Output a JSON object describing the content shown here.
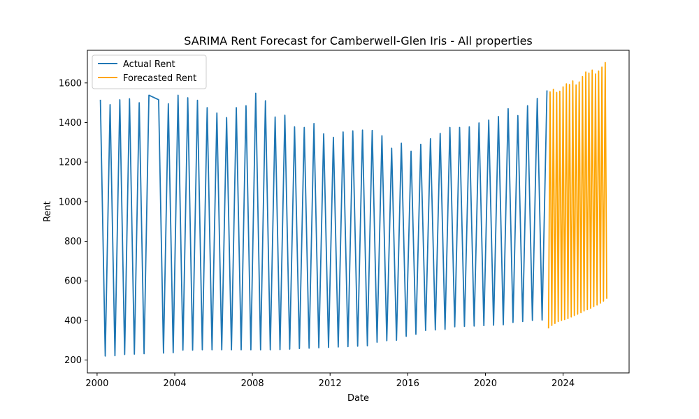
{
  "chart_data": {
    "type": "line",
    "title": "SARIMA Rent Forecast for Camberwell-Glen Iris - All properties",
    "xlabel": "Date",
    "ylabel": "Rent",
    "xlim": [
      1999.5,
      2027.4
    ],
    "ylim": [
      135,
      1765
    ],
    "x_ticks": [
      2000,
      2004,
      2008,
      2012,
      2016,
      2020,
      2024
    ],
    "y_ticks": [
      200,
      400,
      600,
      800,
      1000,
      1200,
      1400,
      1600
    ],
    "grid": false,
    "legend_position": "top-left",
    "series": [
      {
        "name": "Actual Rent",
        "color": "#1f77b4",
        "points": [
          [
            2000.17,
            1515
          ],
          [
            2000.42,
            220
          ],
          [
            2000.67,
            1490
          ],
          [
            2000.92,
            222
          ],
          [
            2001.17,
            1515
          ],
          [
            2001.42,
            228
          ],
          [
            2001.67,
            1520
          ],
          [
            2001.92,
            230
          ],
          [
            2002.17,
            1500
          ],
          [
            2002.42,
            232
          ],
          [
            2002.67,
            1538
          ],
          [
            2003.17,
            1515
          ],
          [
            2003.42,
            235
          ],
          [
            2003.67,
            1495
          ],
          [
            2003.92,
            237
          ],
          [
            2004.17,
            1538
          ],
          [
            2004.42,
            250
          ],
          [
            2004.67,
            1525
          ],
          [
            2004.92,
            250
          ],
          [
            2005.17,
            1512
          ],
          [
            2005.42,
            252
          ],
          [
            2005.67,
            1475
          ],
          [
            2005.92,
            252
          ],
          [
            2006.17,
            1448
          ],
          [
            2006.42,
            252
          ],
          [
            2006.67,
            1425
          ],
          [
            2006.92,
            252
          ],
          [
            2007.17,
            1475
          ],
          [
            2007.42,
            252
          ],
          [
            2007.67,
            1485
          ],
          [
            2007.92,
            252
          ],
          [
            2008.17,
            1548
          ],
          [
            2008.42,
            252
          ],
          [
            2008.67,
            1510
          ],
          [
            2008.92,
            252
          ],
          [
            2009.17,
            1428
          ],
          [
            2009.42,
            253
          ],
          [
            2009.67,
            1437
          ],
          [
            2009.92,
            255
          ],
          [
            2010.17,
            1378
          ],
          [
            2010.42,
            258
          ],
          [
            2010.67,
            1375
          ],
          [
            2010.92,
            260
          ],
          [
            2011.17,
            1395
          ],
          [
            2011.42,
            262
          ],
          [
            2011.67,
            1343
          ],
          [
            2011.92,
            264
          ],
          [
            2012.17,
            1325
          ],
          [
            2012.42,
            266
          ],
          [
            2012.67,
            1352
          ],
          [
            2012.92,
            268
          ],
          [
            2013.17,
            1358
          ],
          [
            2013.42,
            270
          ],
          [
            2013.67,
            1362
          ],
          [
            2013.92,
            272
          ],
          [
            2014.17,
            1360
          ],
          [
            2014.42,
            290
          ],
          [
            2014.67,
            1333
          ],
          [
            2014.92,
            298
          ],
          [
            2015.17,
            1270
          ],
          [
            2015.42,
            300
          ],
          [
            2015.67,
            1295
          ],
          [
            2015.92,
            320
          ],
          [
            2016.17,
            1255
          ],
          [
            2016.42,
            330
          ],
          [
            2016.67,
            1290
          ],
          [
            2016.92,
            350
          ],
          [
            2017.17,
            1318
          ],
          [
            2017.42,
            352
          ],
          [
            2017.67,
            1345
          ],
          [
            2017.92,
            355
          ],
          [
            2018.17,
            1375
          ],
          [
            2018.42,
            368
          ],
          [
            2018.67,
            1375
          ],
          [
            2018.92,
            370
          ],
          [
            2019.17,
            1378
          ],
          [
            2019.42,
            372
          ],
          [
            2019.67,
            1398
          ],
          [
            2019.92,
            374
          ],
          [
            2020.17,
            1412
          ],
          [
            2020.42,
            376
          ],
          [
            2020.67,
            1430
          ],
          [
            2020.92,
            378
          ],
          [
            2021.17,
            1470
          ],
          [
            2021.42,
            390
          ],
          [
            2021.67,
            1435
          ],
          [
            2021.92,
            395
          ],
          [
            2022.17,
            1485
          ],
          [
            2022.42,
            400
          ],
          [
            2022.67,
            1522
          ],
          [
            2022.92,
            402
          ],
          [
            2023.17,
            1562
          ]
        ]
      },
      {
        "name": "Forecasted Rent",
        "color": "#ffa500",
        "points": [
          [
            2023.25,
            360
          ],
          [
            2023.33,
            1555
          ],
          [
            2023.42,
            375
          ],
          [
            2023.5,
            1568
          ],
          [
            2023.58,
            385
          ],
          [
            2023.67,
            1552
          ],
          [
            2023.75,
            395
          ],
          [
            2023.83,
            1558
          ],
          [
            2023.92,
            400
          ],
          [
            2024.0,
            1580
          ],
          [
            2024.08,
            405
          ],
          [
            2024.17,
            1595
          ],
          [
            2024.25,
            410
          ],
          [
            2024.33,
            1592
          ],
          [
            2024.42,
            418
          ],
          [
            2024.5,
            1610
          ],
          [
            2024.58,
            425
          ],
          [
            2024.67,
            1590
          ],
          [
            2024.75,
            432
          ],
          [
            2024.83,
            1605
          ],
          [
            2024.92,
            440
          ],
          [
            2025.0,
            1632
          ],
          [
            2025.08,
            448
          ],
          [
            2025.17,
            1655
          ],
          [
            2025.25,
            455
          ],
          [
            2025.33,
            1650
          ],
          [
            2025.42,
            462
          ],
          [
            2025.5,
            1665
          ],
          [
            2025.58,
            470
          ],
          [
            2025.67,
            1645
          ],
          [
            2025.75,
            478
          ],
          [
            2025.83,
            1660
          ],
          [
            2025.92,
            488
          ],
          [
            2026.0,
            1680
          ],
          [
            2026.08,
            498
          ],
          [
            2026.17,
            1703
          ],
          [
            2026.25,
            510
          ]
        ]
      }
    ]
  }
}
